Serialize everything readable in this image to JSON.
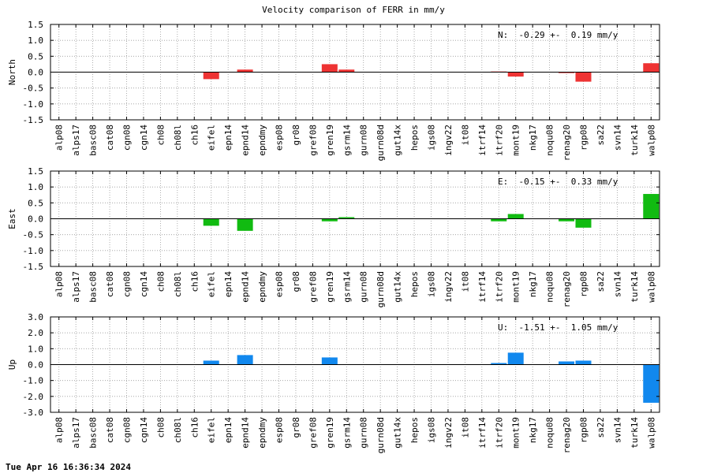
{
  "chart_data": {
    "title": "Velocity comparison of FERR in mm/y",
    "type": "bar",
    "categories": [
      "alp08",
      "alps17",
      "basc08",
      "cat08",
      "cgn08",
      "cgn14",
      "ch08",
      "ch08l",
      "ch16",
      "eifel",
      "epn14",
      "epnd14",
      "epndmy",
      "esp08",
      "gr08",
      "gref08",
      "gren19",
      "gsrm14",
      "gurn08",
      "gurn08d",
      "gut14x",
      "hepos",
      "igs08",
      "ingv22",
      "it08",
      "itrf14",
      "itrf20",
      "mont19",
      "nkg17",
      "noqu08",
      "renag20",
      "rgp08",
      "sa22",
      "svn14",
      "turk14",
      "walp08"
    ],
    "panels": [
      {
        "name": "north",
        "ylabel": "North",
        "color": "#ee3333",
        "ylim": [
          -1.5,
          1.5
        ],
        "yticks": [
          "1.5",
          "1.0",
          "0.5",
          "0.0",
          "-0.5",
          "-1.0",
          "-1.5"
        ],
        "ytick_values": [
          1.5,
          1.0,
          0.5,
          0.0,
          -0.5,
          -1.0,
          -1.5
        ],
        "stat": "N:  -0.29 +-  0.19 mm/y",
        "values": [
          null,
          null,
          null,
          null,
          null,
          null,
          null,
          null,
          null,
          -0.22,
          null,
          0.08,
          null,
          null,
          null,
          null,
          0.25,
          0.08,
          null,
          null,
          null,
          null,
          null,
          null,
          null,
          null,
          0.02,
          -0.14,
          null,
          null,
          -0.03,
          -0.3,
          null,
          null,
          null,
          0.28
        ]
      },
      {
        "name": "east",
        "ylabel": "East",
        "color": "#11bb11",
        "ylim": [
          -1.5,
          1.5
        ],
        "yticks": [
          "1.5",
          "1.0",
          "0.5",
          "0.0",
          "-0.5",
          "-1.0",
          "-1.5"
        ],
        "ytick_values": [
          1.5,
          1.0,
          0.5,
          0.0,
          -0.5,
          -1.0,
          -1.5
        ],
        "stat": "E:  -0.15 +-  0.33 mm/y",
        "values": [
          null,
          null,
          null,
          null,
          null,
          null,
          null,
          null,
          null,
          -0.22,
          null,
          -0.38,
          null,
          null,
          null,
          null,
          -0.08,
          0.05,
          null,
          null,
          null,
          null,
          null,
          null,
          null,
          null,
          -0.08,
          0.15,
          null,
          null,
          -0.08,
          -0.28,
          null,
          null,
          null,
          0.78
        ]
      },
      {
        "name": "up",
        "ylabel": "Up",
        "color": "#1188ee",
        "ylim": [
          -3.0,
          3.0
        ],
        "yticks": [
          "3.0",
          "2.0",
          "1.0",
          "0.0",
          "-1.0",
          "-2.0",
          "-3.0"
        ],
        "ytick_values": [
          3.0,
          2.0,
          1.0,
          0.0,
          -1.0,
          -2.0,
          -3.0
        ],
        "stat": "U:  -1.51 +-  1.05 mm/y",
        "values": [
          null,
          null,
          null,
          null,
          null,
          null,
          null,
          null,
          null,
          0.25,
          null,
          0.6,
          null,
          null,
          null,
          null,
          0.45,
          null,
          null,
          null,
          null,
          null,
          null,
          null,
          null,
          null,
          0.1,
          0.75,
          null,
          null,
          0.2,
          0.25,
          null,
          null,
          null,
          -2.4
        ]
      }
    ],
    "grid": true
  },
  "footer": {
    "timestamp": "Tue Apr 16 16:36:34 2024"
  }
}
